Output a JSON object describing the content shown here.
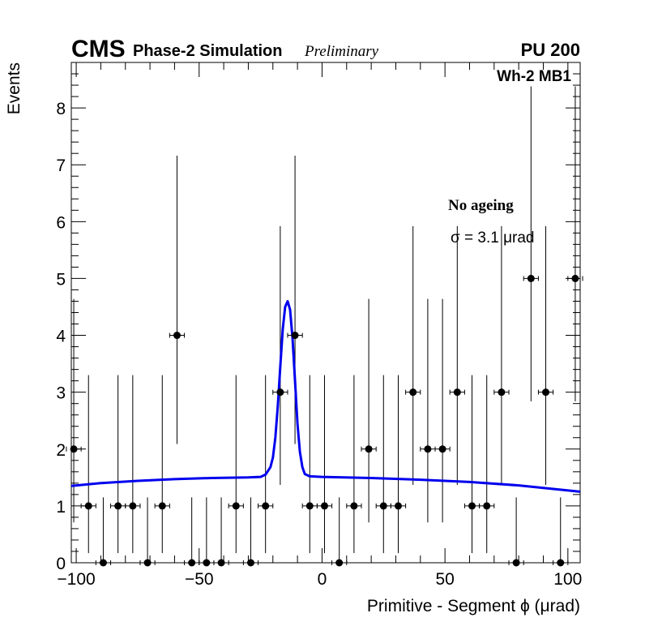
{
  "header": {
    "experiment": "CMS",
    "subtitle": "Phase-2 Simulation",
    "status": "Preliminary",
    "pileup": "PU 200"
  },
  "chart_data": {
    "type": "scatter",
    "title": "",
    "xlabel": "Primitive - Segment ϕ (μrad)",
    "ylabel": "Events",
    "xlim": [
      -102,
      105
    ],
    "ylim": [
      0,
      8.8
    ],
    "x_ticks": [
      -100,
      -50,
      0,
      50,
      100
    ],
    "x_tick_labels": [
      "−100",
      "−50",
      "0",
      "50",
      "100"
    ],
    "y_ticks": [
      0,
      1,
      2,
      3,
      4,
      5,
      6,
      7,
      8
    ],
    "y_tick_labels": [
      "0",
      "1",
      "2",
      "3",
      "4",
      "5",
      "6",
      "7",
      "8"
    ],
    "bin_width": 6,
    "region_label": "Wh-2 MB1",
    "legend_label": "No ageing",
    "fit_label": "σ = 3.1 μrad",
    "series": [
      {
        "name": "Simulation",
        "kind": "points_with_errors",
        "x": [
          -101,
          -95,
          -89,
          -83,
          -77,
          -71,
          -65,
          -59,
          -53,
          -47,
          -41,
          -35,
          -29,
          -23,
          -17,
          -11,
          -5,
          1,
          7,
          13,
          19,
          25,
          31,
          37,
          43,
          49,
          55,
          61,
          67,
          73,
          79,
          85,
          91,
          97,
          103
        ],
        "y": [
          2,
          1,
          0,
          1,
          1,
          0,
          1,
          4,
          0,
          0,
          0,
          1,
          0,
          1,
          3,
          4,
          1,
          1,
          0,
          1,
          2,
          1,
          1,
          3,
          2,
          2,
          3,
          1,
          1,
          3,
          0,
          5,
          3,
          0,
          5
        ],
        "yerr_low": [
          1.29,
          0.83,
          0,
          0.83,
          0.83,
          0,
          0.83,
          1.91,
          0,
          0,
          0,
          0.83,
          0,
          0.83,
          1.63,
          1.91,
          0.83,
          0.83,
          0,
          0.83,
          1.29,
          0.83,
          0.83,
          1.63,
          1.29,
          1.29,
          1.63,
          0.83,
          0.83,
          1.63,
          0,
          2.16,
          1.63,
          0,
          2.16
        ],
        "yerr_high": [
          2.64,
          2.3,
          1.15,
          2.3,
          2.3,
          1.15,
          2.3,
          3.16,
          1.15,
          1.15,
          1.15,
          2.3,
          1.15,
          2.3,
          2.92,
          3.16,
          2.3,
          2.3,
          1.15,
          2.3,
          2.64,
          2.3,
          2.3,
          2.92,
          2.64,
          2.64,
          2.92,
          2.3,
          2.3,
          2.92,
          1.15,
          3.38,
          2.92,
          1.15,
          3.38
        ]
      },
      {
        "name": "Fit",
        "kind": "line",
        "color": "#0000ee",
        "x": [
          -102,
          -90,
          -75,
          -60,
          -45,
          -30,
          -25,
          -23,
          -21,
          -20,
          -19,
          -18,
          -17,
          -16,
          -15,
          -14,
          -13,
          -12,
          -11,
          -10,
          -9,
          -8,
          -7,
          -5,
          0,
          20,
          40,
          60,
          80,
          105
        ],
        "y": [
          1.35,
          1.4,
          1.44,
          1.47,
          1.49,
          1.5,
          1.51,
          1.55,
          1.68,
          1.85,
          2.2,
          2.75,
          3.45,
          4.1,
          4.5,
          4.6,
          4.45,
          3.95,
          3.2,
          2.45,
          1.95,
          1.68,
          1.56,
          1.52,
          1.51,
          1.49,
          1.46,
          1.42,
          1.36,
          1.25
        ]
      }
    ]
  }
}
